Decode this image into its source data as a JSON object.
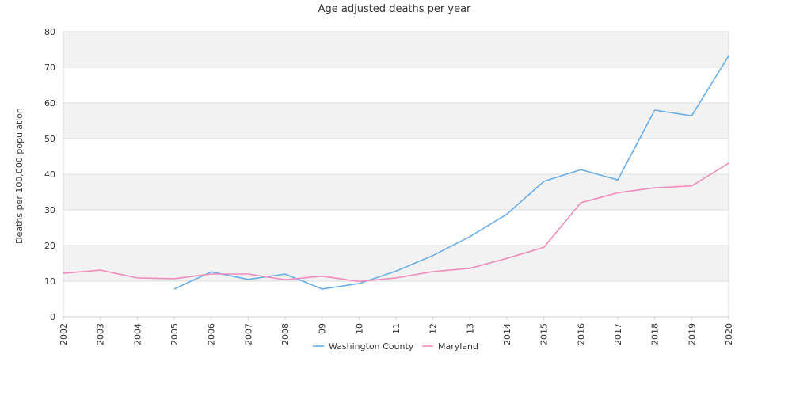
{
  "chart_data": {
    "type": "line",
    "title": "Age adjusted deaths per year",
    "xlabel": "",
    "ylabel": "Deaths per 100,000 population",
    "ylim": [
      0,
      80
    ],
    "yticks": [
      0,
      10,
      20,
      30,
      40,
      50,
      60,
      70,
      80
    ],
    "grid": true,
    "legend_position": "bottom",
    "categories": [
      "2002",
      "2003",
      "2004",
      "2005",
      "2006",
      "2007",
      "2008",
      "09",
      "10",
      "11",
      "12",
      "13",
      "2014",
      "2015",
      "2016",
      "2017",
      "2018",
      "2019",
      "2020"
    ],
    "series": [
      {
        "name": "Washington County",
        "color": "#6aaee8",
        "values": [
          null,
          null,
          null,
          7.8,
          12.6,
          10.5,
          12.0,
          7.8,
          9.3,
          12.8,
          17.2,
          22.5,
          28.8,
          38.0,
          41.3,
          38.4,
          58.0,
          56.4,
          73.2
        ]
      },
      {
        "name": "Maryland",
        "color": "#f08cbe",
        "values": [
          12.2,
          13.1,
          10.9,
          10.7,
          12.0,
          12.0,
          10.4,
          11.4,
          9.9,
          10.9,
          12.7,
          13.6,
          16.4,
          19.5,
          32.0,
          34.8,
          36.2,
          36.7,
          43.1
        ]
      }
    ]
  }
}
